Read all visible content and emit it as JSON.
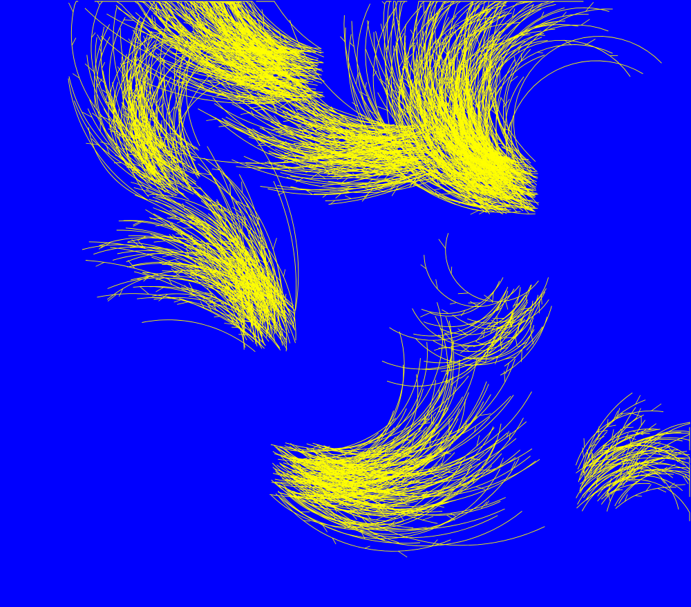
{
  "artwork": {
    "colors": {
      "background": "#0000ff",
      "strokes": "#ffff00"
    }
  }
}
